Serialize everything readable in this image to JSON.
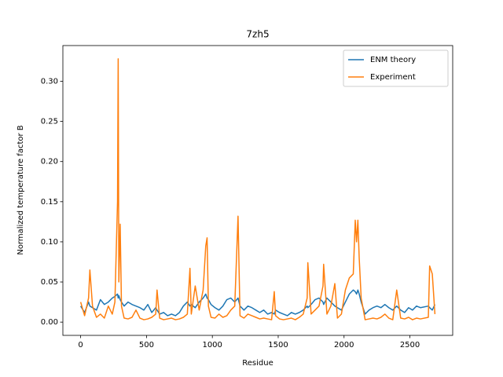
{
  "chart_data": {
    "type": "line",
    "title": "7zh5",
    "xlabel": "Residue",
    "ylabel": "Normalized temperature factor B",
    "x": [
      0,
      30,
      60,
      70,
      90,
      120,
      150,
      180,
      210,
      240,
      260,
      280,
      285,
      290,
      300,
      310,
      330,
      360,
      390,
      420,
      450,
      480,
      510,
      540,
      570,
      580,
      600,
      630,
      660,
      690,
      720,
      750,
      780,
      810,
      830,
      840,
      870,
      900,
      930,
      950,
      960,
      970,
      990,
      1020,
      1050,
      1080,
      1110,
      1140,
      1170,
      1195,
      1210,
      1240,
      1270,
      1300,
      1330,
      1360,
      1390,
      1420,
      1450,
      1470,
      1480,
      1510,
      1540,
      1570,
      1600,
      1630,
      1660,
      1690,
      1720,
      1725,
      1750,
      1780,
      1810,
      1840,
      1845,
      1870,
      1900,
      1930,
      1950,
      1980,
      2010,
      2040,
      2070,
      2085,
      2095,
      2105,
      2115,
      2130,
      2160,
      2190,
      2220,
      2250,
      2280,
      2310,
      2340,
      2370,
      2400,
      2430,
      2460,
      2490,
      2520,
      2550,
      2580,
      2640,
      2650,
      2670,
      2690
    ],
    "series": [
      {
        "name": "ENM theory",
        "color": "#1f77b4",
        "values": [
          0.02,
          0.012,
          0.025,
          0.02,
          0.018,
          0.015,
          0.028,
          0.022,
          0.025,
          0.03,
          0.032,
          0.035,
          0.03,
          0.033,
          0.028,
          0.025,
          0.02,
          0.025,
          0.022,
          0.02,
          0.018,
          0.015,
          0.022,
          0.012,
          0.018,
          0.015,
          0.01,
          0.012,
          0.008,
          0.01,
          0.008,
          0.012,
          0.02,
          0.025,
          0.02,
          0.022,
          0.018,
          0.025,
          0.03,
          0.035,
          0.03,
          0.028,
          0.022,
          0.018,
          0.015,
          0.02,
          0.028,
          0.03,
          0.025,
          0.03,
          0.02,
          0.015,
          0.02,
          0.018,
          0.015,
          0.012,
          0.015,
          0.01,
          0.012,
          0.01,
          0.015,
          0.012,
          0.01,
          0.008,
          0.012,
          0.01,
          0.012,
          0.015,
          0.02,
          0.018,
          0.022,
          0.028,
          0.03,
          0.025,
          0.022,
          0.03,
          0.025,
          0.02,
          0.018,
          0.015,
          0.025,
          0.035,
          0.04,
          0.038,
          0.035,
          0.04,
          0.035,
          0.025,
          0.01,
          0.015,
          0.018,
          0.02,
          0.018,
          0.022,
          0.018,
          0.015,
          0.02,
          0.015,
          0.012,
          0.018,
          0.015,
          0.02,
          0.018,
          0.02,
          0.018,
          0.015,
          0.022
        ]
      },
      {
        "name": "Experiment",
        "color": "#ff7f0e",
        "values": [
          0.025,
          0.008,
          0.03,
          0.065,
          0.02,
          0.006,
          0.01,
          0.005,
          0.02,
          0.01,
          0.025,
          0.15,
          0.328,
          0.05,
          0.122,
          0.02,
          0.005,
          0.004,
          0.006,
          0.015,
          0.005,
          0.003,
          0.004,
          0.006,
          0.01,
          0.04,
          0.005,
          0.003,
          0.004,
          0.005,
          0.003,
          0.004,
          0.006,
          0.01,
          0.067,
          0.01,
          0.045,
          0.015,
          0.04,
          0.095,
          0.105,
          0.02,
          0.006,
          0.005,
          0.01,
          0.006,
          0.008,
          0.015,
          0.02,
          0.132,
          0.008,
          0.005,
          0.01,
          0.008,
          0.006,
          0.004,
          0.005,
          0.004,
          0.003,
          0.038,
          0.008,
          0.004,
          0.003,
          0.004,
          0.005,
          0.003,
          0.006,
          0.01,
          0.03,
          0.074,
          0.01,
          0.015,
          0.02,
          0.045,
          0.072,
          0.01,
          0.02,
          0.048,
          0.005,
          0.01,
          0.04,
          0.055,
          0.06,
          0.127,
          0.1,
          0.127,
          0.08,
          0.03,
          0.003,
          0.004,
          0.005,
          0.004,
          0.006,
          0.01,
          0.005,
          0.003,
          0.04,
          0.005,
          0.004,
          0.006,
          0.003,
          0.005,
          0.004,
          0.006,
          0.07,
          0.06,
          0.01
        ]
      }
    ],
    "xlim": [
      -135,
      2825
    ],
    "xticks": [
      0,
      500,
      1000,
      1500,
      2000,
      2500
    ],
    "ylim": [
      -0.0165,
      0.3445
    ],
    "yticks": [
      {
        "value": 0,
        "label": "0.00"
      },
      {
        "value": 0.05,
        "label": "0.05"
      },
      {
        "value": 0.1,
        "label": "0.10"
      },
      {
        "value": 0.15,
        "label": "0.15"
      },
      {
        "value": 0.2,
        "label": "0.20"
      },
      {
        "value": 0.25,
        "label": "0.25"
      },
      {
        "value": 0.3,
        "label": "0.30"
      }
    ],
    "legend": "upper right",
    "grid": false
  }
}
